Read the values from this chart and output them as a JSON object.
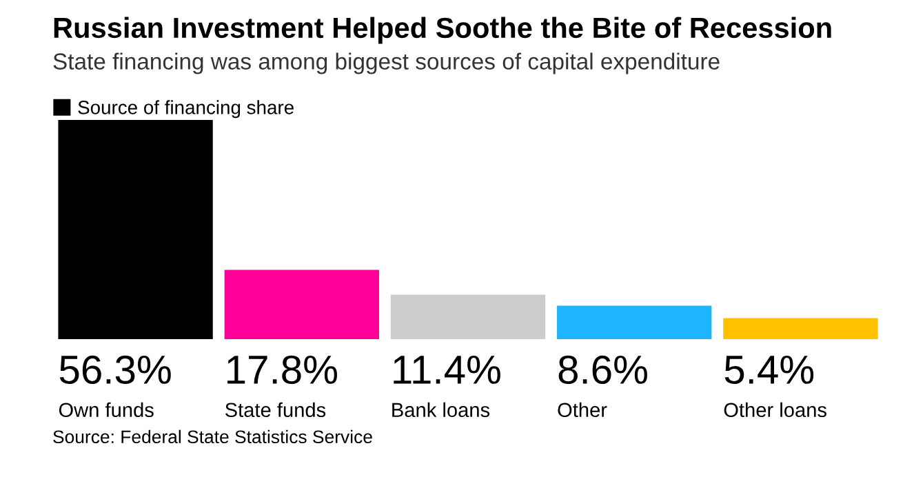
{
  "chart_data": {
    "type": "bar",
    "title": "Russian Investment Helped Soothe the Bite of Recession",
    "subtitle": "State financing was among biggest sources of capital expenditure",
    "categories": [
      "Own funds",
      "State funds",
      "Bank loans",
      "Other",
      "Other loans"
    ],
    "series": [
      {
        "name": "Source of financing share",
        "color": "#000000",
        "colors": [
          "#000000",
          "#ff0099",
          "#cccccc",
          "#1eb4ff",
          "#ffc000"
        ],
        "values": [
          56.3,
          17.8,
          11.4,
          8.6,
          5.4
        ],
        "value_labels": [
          "56.3%",
          "17.8%",
          "11.4%",
          "8.6%",
          "5.4%"
        ]
      }
    ],
    "legend": "top left",
    "annotations": [
      "Source: Federal State Statistics Service"
    ]
  }
}
